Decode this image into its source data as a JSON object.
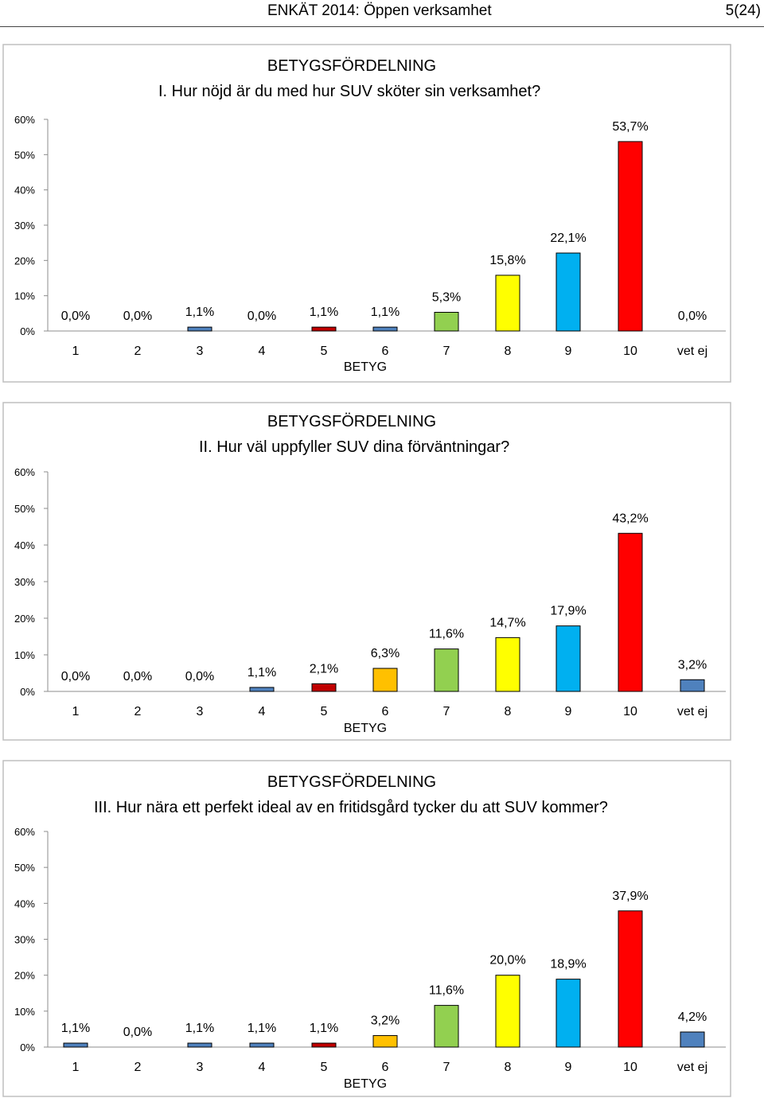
{
  "header": {
    "doc_title": "ENKÄT 2014: Öppen verksamhet",
    "page": "5(24)"
  },
  "colors": {
    "blue": "#4f81bd",
    "darkred": "#c00000",
    "orange": "#ffc000",
    "green": "#92d050",
    "yellow": "#ffff00",
    "skyblue": "#00b0f0",
    "red": "#ff0000"
  },
  "chart_data": [
    {
      "type": "bar",
      "title": "BETYGSFÖRDELNING",
      "subtitle": "I. Hur nöjd är du med hur SUV sköter sin verksamhet?",
      "xlabel": "BETYG",
      "ylabel": "",
      "ylim": [
        0,
        60
      ],
      "yticks": [
        "0%",
        "10%",
        "20%",
        "30%",
        "40%",
        "50%",
        "60%"
      ],
      "categories": [
        "1",
        "2",
        "3",
        "4",
        "5",
        "6",
        "7",
        "8",
        "9",
        "10",
        "vet ej"
      ],
      "values": [
        0.0,
        0.0,
        1.1,
        0.0,
        1.1,
        1.1,
        5.3,
        15.8,
        22.1,
        53.7,
        0.0
      ],
      "labels": [
        "0,0%",
        "0,0%",
        "1,1%",
        "0,0%",
        "1,1%",
        "1,1%",
        "5,3%",
        "15,8%",
        "22,1%",
        "53,7%",
        "0,0%"
      ],
      "bar_colors": [
        "#4f81bd",
        "#4f81bd",
        "#4f81bd",
        "#4f81bd",
        "#c00000",
        "#4f81bd",
        "#92d050",
        "#ffff00",
        "#00b0f0",
        "#ff0000",
        "#4f81bd"
      ],
      "grid": false
    },
    {
      "type": "bar",
      "title": "BETYGSFÖRDELNING",
      "subtitle": "II. Hur väl uppfyller SUV dina förväntningar?",
      "xlabel": "BETYG",
      "ylabel": "",
      "ylim": [
        0,
        60
      ],
      "yticks": [
        "0%",
        "10%",
        "20%",
        "30%",
        "40%",
        "50%",
        "60%"
      ],
      "categories": [
        "1",
        "2",
        "3",
        "4",
        "5",
        "6",
        "7",
        "8",
        "9",
        "10",
        "vet ej"
      ],
      "values": [
        0.0,
        0.0,
        0.0,
        1.1,
        2.1,
        6.3,
        11.6,
        14.7,
        17.9,
        43.2,
        3.2
      ],
      "labels": [
        "0,0%",
        "0,0%",
        "0,0%",
        "1,1%",
        "2,1%",
        "6,3%",
        "11,6%",
        "14,7%",
        "17,9%",
        "43,2%",
        "3,2%"
      ],
      "bar_colors": [
        "#4f81bd",
        "#4f81bd",
        "#4f81bd",
        "#4f81bd",
        "#c00000",
        "#ffc000",
        "#92d050",
        "#ffff00",
        "#00b0f0",
        "#ff0000",
        "#4f81bd"
      ],
      "grid": false
    },
    {
      "type": "bar",
      "title": "BETYGSFÖRDELNING",
      "subtitle": "III. Hur nära ett perfekt ideal av en fritidsgård tycker du att SUV kommer?",
      "xlabel": "BETYG",
      "ylabel": "",
      "ylim": [
        0,
        60
      ],
      "yticks": [
        "0%",
        "10%",
        "20%",
        "30%",
        "40%",
        "50%",
        "60%"
      ],
      "categories": [
        "1",
        "2",
        "3",
        "4",
        "5",
        "6",
        "7",
        "8",
        "9",
        "10",
        "vet ej"
      ],
      "values": [
        1.1,
        0.0,
        1.1,
        1.1,
        1.1,
        3.2,
        11.6,
        20.0,
        18.9,
        37.9,
        4.2
      ],
      "labels": [
        "1,1%",
        "0,0%",
        "1,1%",
        "1,1%",
        "1,1%",
        "3,2%",
        "11,6%",
        "20,0%",
        "18,9%",
        "37,9%",
        "4,2%"
      ],
      "bar_colors": [
        "#4f81bd",
        "#4f81bd",
        "#4f81bd",
        "#4f81bd",
        "#c00000",
        "#ffc000",
        "#92d050",
        "#ffff00",
        "#00b0f0",
        "#ff0000",
        "#4f81bd"
      ],
      "grid": false
    }
  ]
}
